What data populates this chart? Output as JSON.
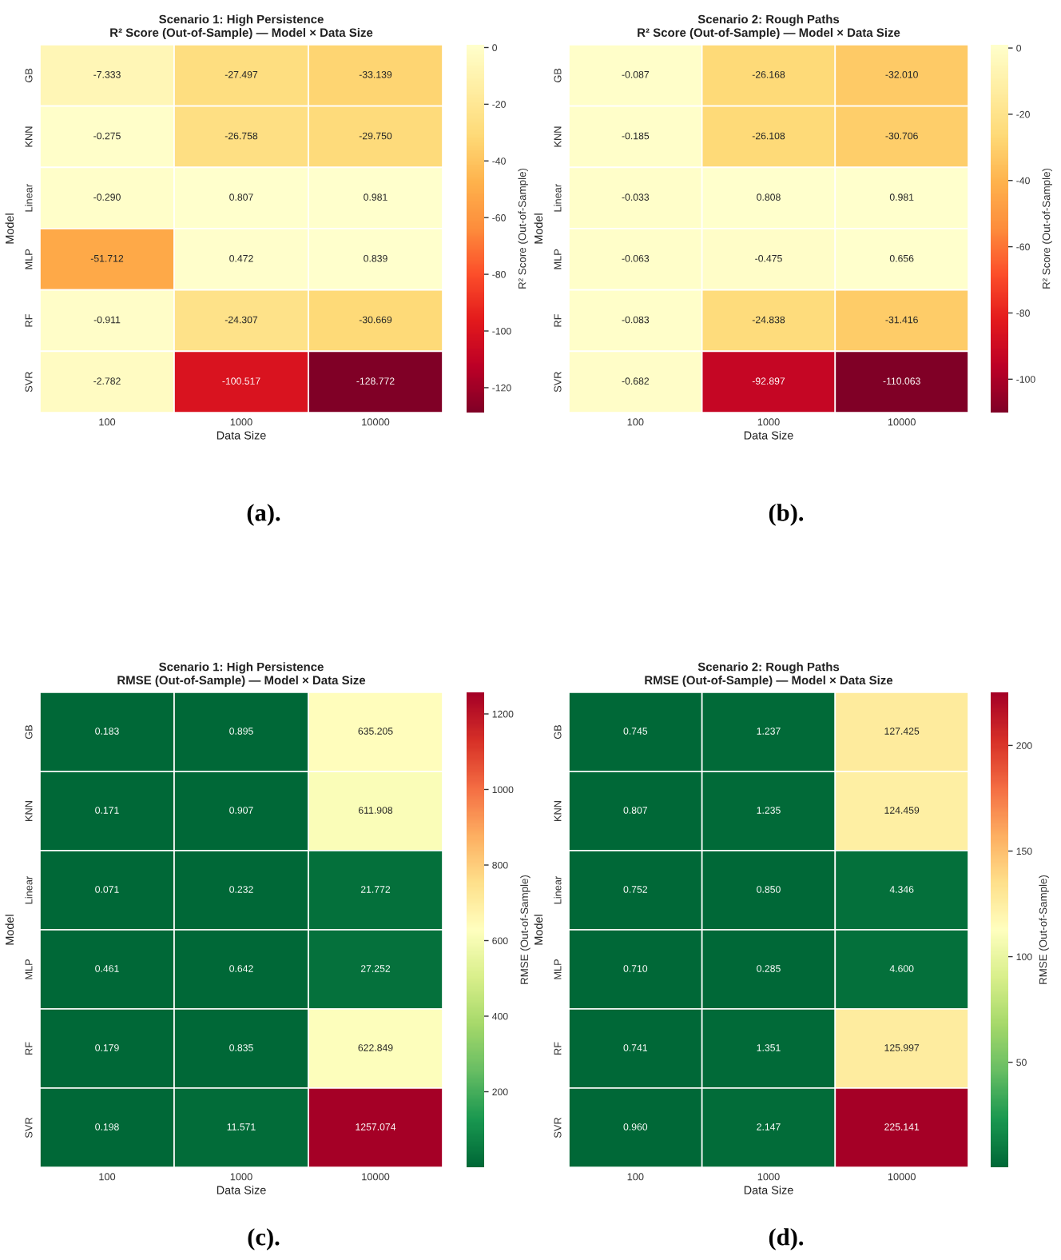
{
  "chart_data": [
    {
      "type": "heatmap",
      "title": "Scenario 1: High Persistence",
      "subtitle": "R² Score (Out-of-Sample) — Model × Data Size",
      "xlabel": "Data Size",
      "ylabel": "Model",
      "clabel": "R² Score (Out-of-Sample)",
      "annotations": [
        "(a)."
      ],
      "categories": [
        "100",
        "1000",
        "10000"
      ],
      "y_categories": [
        "GB",
        "KNN",
        "Linear",
        "MLP",
        "RF",
        "SVR"
      ],
      "cells": [
        [
          -7.333,
          -27.497,
          -33.139
        ],
        [
          -0.275,
          -26.758,
          -29.75
        ],
        [
          -0.29,
          0.807,
          0.981
        ],
        [
          -51.712,
          0.472,
          0.839
        ],
        [
          -0.911,
          -24.307,
          -30.669
        ],
        [
          -2.782,
          -100.517,
          -128.772
        ]
      ],
      "cell_labels": [
        [
          "-7.333",
          "-27.497",
          "-33.139"
        ],
        [
          "-0.275",
          "-26.758",
          "-29.750"
        ],
        [
          "-0.290",
          "0.807",
          "0.981"
        ],
        [
          "-51.712",
          "0.472",
          "0.839"
        ],
        [
          "-0.911",
          "-24.307",
          "-30.669"
        ],
        [
          "-2.782",
          "-100.517",
          "-128.772"
        ]
      ],
      "clim": [
        -128.772,
        0.981
      ],
      "cticks": [
        0,
        -20,
        -40,
        -60,
        -80,
        -100,
        -120
      ],
      "colors": [
        "#800026",
        "#bd0026",
        "#e31a1c",
        "#fc4e2a",
        "#fd8d3c",
        "#feb24c",
        "#fed976",
        "#ffeda0",
        "#ffffcc"
      ]
    },
    {
      "type": "heatmap",
      "title": "Scenario 2: Rough Paths",
      "subtitle": "R² Score (Out-of-Sample) — Model × Data Size",
      "xlabel": "Data Size",
      "ylabel": "Model",
      "clabel": "R² Score (Out-of-Sample)",
      "annotations": [
        "(b)."
      ],
      "categories": [
        "100",
        "1000",
        "10000"
      ],
      "y_categories": [
        "GB",
        "KNN",
        "Linear",
        "MLP",
        "RF",
        "SVR"
      ],
      "cells": [
        [
          -0.087,
          -26.168,
          -32.01
        ],
        [
          -0.185,
          -26.108,
          -30.706
        ],
        [
          -0.033,
          0.808,
          0.981
        ],
        [
          -0.063,
          -0.475,
          0.656
        ],
        [
          -0.083,
          -24.838,
          -31.416
        ],
        [
          -0.682,
          -92.897,
          -110.063
        ]
      ],
      "cell_labels": [
        [
          "-0.087",
          "-26.168",
          "-32.010"
        ],
        [
          "-0.185",
          "-26.108",
          "-30.706"
        ],
        [
          "-0.033",
          "0.808",
          "0.981"
        ],
        [
          "-0.063",
          "-0.475",
          "0.656"
        ],
        [
          "-0.083",
          "-24.838",
          "-31.416"
        ],
        [
          "-0.682",
          "-92.897",
          "-110.063"
        ]
      ],
      "clim": [
        -110.063,
        0.981
      ],
      "cticks": [
        0,
        -20,
        -40,
        -60,
        -80,
        -100
      ],
      "colors": [
        "#800026",
        "#bd0026",
        "#e31a1c",
        "#fc4e2a",
        "#fd8d3c",
        "#feb24c",
        "#fed976",
        "#ffeda0",
        "#ffffcc"
      ]
    },
    {
      "type": "heatmap",
      "title": "Scenario 1: High Persistence",
      "subtitle": "RMSE (Out-of-Sample) — Model × Data Size",
      "xlabel": "Data Size",
      "ylabel": "Model",
      "clabel": "RMSE (Out-of-Sample)",
      "annotations": [
        "(c)."
      ],
      "categories": [
        "100",
        "1000",
        "10000"
      ],
      "y_categories": [
        "GB",
        "KNN",
        "Linear",
        "MLP",
        "RF",
        "SVR"
      ],
      "cells": [
        [
          0.183,
          0.895,
          635.205
        ],
        [
          0.171,
          0.907,
          611.908
        ],
        [
          0.071,
          0.232,
          21.772
        ],
        [
          0.461,
          0.642,
          27.252
        ],
        [
          0.179,
          0.835,
          622.849
        ],
        [
          0.198,
          11.571,
          1257.074
        ]
      ],
      "cell_labels": [
        [
          "0.183",
          "0.895",
          "635.205"
        ],
        [
          "0.171",
          "0.907",
          "611.908"
        ],
        [
          "0.071",
          "0.232",
          "21.772"
        ],
        [
          "0.461",
          "0.642",
          "27.252"
        ],
        [
          "0.179",
          "0.835",
          "622.849"
        ],
        [
          "0.198",
          "11.571",
          "1257.074"
        ]
      ],
      "clim": [
        0.071,
        1257.074
      ],
      "cticks": [
        200,
        400,
        600,
        800,
        1000,
        1200
      ],
      "colors": [
        "#006837",
        "#1a9850",
        "#66bd63",
        "#a6d96a",
        "#d9ef8b",
        "#ffffbf",
        "#fee08b",
        "#fdae61",
        "#f46d43",
        "#d73027",
        "#a50026"
      ]
    },
    {
      "type": "heatmap",
      "title": "Scenario 2: Rough Paths",
      "subtitle": "RMSE (Out-of-Sample) — Model × Data Size",
      "xlabel": "Data Size",
      "ylabel": "Model",
      "clabel": "RMSE (Out-of-Sample)",
      "annotations": [
        "(d)."
      ],
      "categories": [
        "100",
        "1000",
        "10000"
      ],
      "y_categories": [
        "GB",
        "KNN",
        "Linear",
        "MLP",
        "RF",
        "SVR"
      ],
      "cells": [
        [
          0.745,
          1.237,
          127.425
        ],
        [
          0.807,
          1.235,
          124.459
        ],
        [
          0.752,
          0.85,
          4.346
        ],
        [
          0.71,
          0.285,
          4.6
        ],
        [
          0.741,
          1.351,
          125.997
        ],
        [
          0.96,
          2.147,
          225.141
        ]
      ],
      "cell_labels": [
        [
          "0.745",
          "1.237",
          "127.425"
        ],
        [
          "0.807",
          "1.235",
          "124.459"
        ],
        [
          "0.752",
          "0.850",
          "4.346"
        ],
        [
          "0.710",
          "0.285",
          "4.600"
        ],
        [
          "0.741",
          "1.351",
          "125.997"
        ],
        [
          "0.960",
          "2.147",
          "225.141"
        ]
      ],
      "clim": [
        0.285,
        225.141
      ],
      "cticks": [
        50,
        100,
        150,
        200
      ],
      "colors": [
        "#006837",
        "#1a9850",
        "#66bd63",
        "#a6d96a",
        "#d9ef8b",
        "#ffffbf",
        "#fee08b",
        "#fdae61",
        "#f46d43",
        "#d73027",
        "#a50026"
      ]
    }
  ]
}
